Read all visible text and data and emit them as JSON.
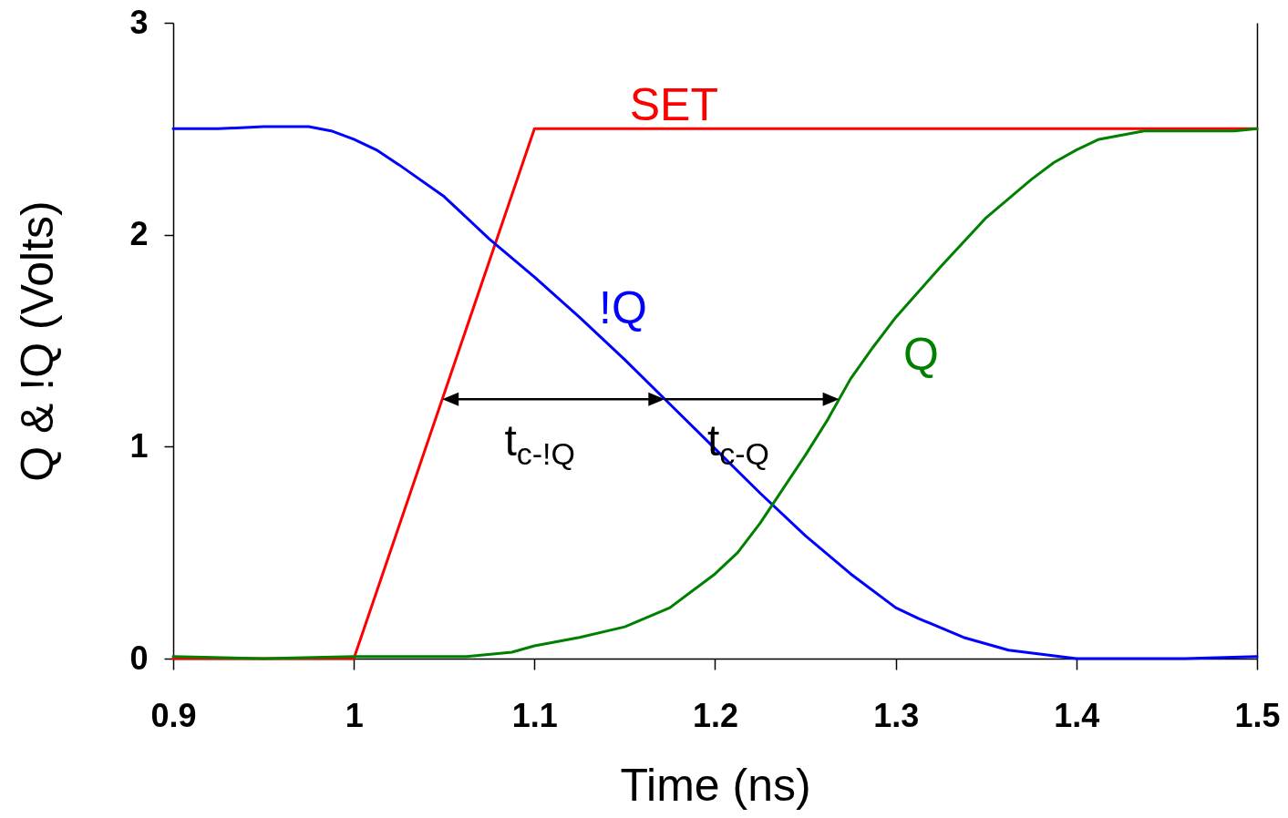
{
  "chart_data": {
    "type": "line",
    "xlabel": "Time (ns)",
    "ylabel": "Q & !Q (Volts)",
    "xlim": [
      0.9,
      1.5
    ],
    "xticks": [
      0.9,
      1,
      1.1,
      1.2,
      1.3,
      1.4,
      1.5
    ],
    "ylim": [
      0,
      3
    ],
    "yticks": [
      0,
      1,
      2,
      3
    ],
    "line_style": "solid",
    "series": [
      {
        "name": "SET",
        "color": "#ff0000",
        "x": [
          0.9,
          1,
          1.1,
          1.5
        ],
        "values": [
          0,
          0,
          2.5,
          2.5
        ]
      },
      {
        "name": "!Q",
        "color": "#0000ff",
        "x": [
          0.9,
          0.925,
          0.95,
          0.975,
          0.9875,
          1,
          1.0125,
          1.025,
          1.05,
          1.075,
          1.1,
          1.125,
          1.15,
          1.175,
          1.2,
          1.225,
          1.25,
          1.275,
          1.3,
          1.3125,
          1.3375,
          1.3625,
          1.4,
          1.46,
          1.5
        ],
        "values": [
          2.5,
          2.5,
          2.51,
          2.51,
          2.49,
          2.45,
          2.4,
          2.33,
          2.18,
          1.98,
          1.8,
          1.61,
          1.41,
          1.2,
          0.99,
          0.78,
          0.58,
          0.4,
          0.24,
          0.19,
          0.1,
          0.04,
          0,
          0,
          0.01
        ]
      },
      {
        "name": "Q",
        "color": "#008000",
        "x": [
          0.9,
          0.95,
          1,
          1.0625,
          1.0875,
          1.1,
          1.125,
          1.15,
          1.175,
          1.1875,
          1.2,
          1.2125,
          1.225,
          1.2375,
          1.25,
          1.2625,
          1.275,
          1.2875,
          1.3,
          1.325,
          1.35,
          1.375,
          1.3875,
          1.4,
          1.4125,
          1.4375,
          1.4875,
          1.5
        ],
        "values": [
          0.01,
          0,
          0.01,
          0.01,
          0.03,
          0.06,
          0.1,
          0.15,
          0.24,
          0.32,
          0.4,
          0.5,
          0.64,
          0.8,
          0.96,
          1.13,
          1.32,
          1.47,
          1.61,
          1.85,
          2.08,
          2.26,
          2.34,
          2.4,
          2.45,
          2.49,
          2.49,
          2.5
        ]
      }
    ],
    "annotations": [
      "t$_{c-!Q}$",
      "t$_{c-Q}$"
    ]
  }
}
